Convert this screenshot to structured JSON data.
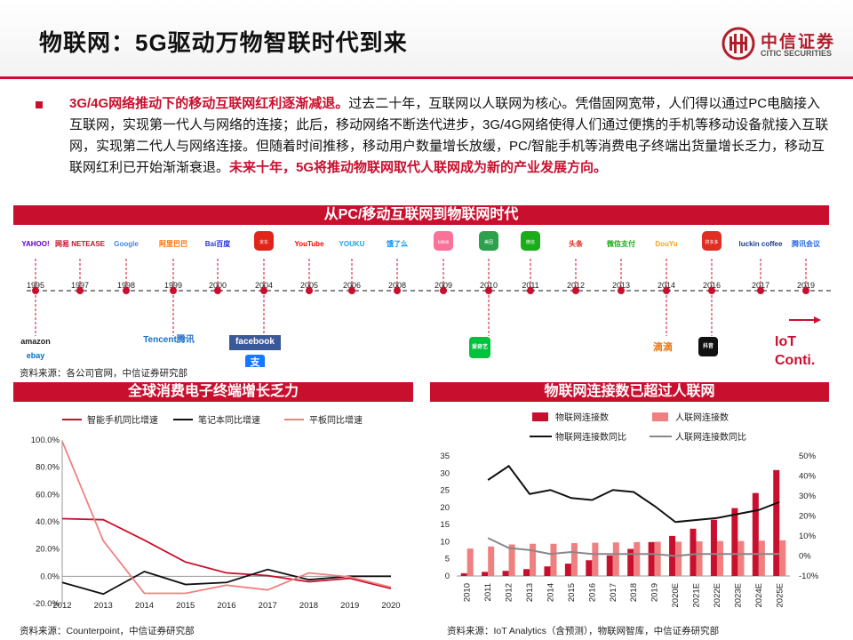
{
  "header": {
    "title": "物联网：5G驱动万物智联时代到来",
    "logo_cn": "中信证券",
    "logo_en": "CITIC SECURITIES"
  },
  "intro": {
    "lead": "3G/4G网络推动下的移动互联网红利逐渐减退。",
    "body": "过去二十年，互联网以人联网为核心。凭借固网宽带，人们得以通过PC电脑接入互联网，实现第一代人与网络的连接；此后，移动网络不断迭代进步，3G/4G网络使得人们通过便携的手机等移动设备就接入互联网，实现第二代人与网络连接。但随着时间推移，移动用户数量增长放缓，PC/智能手机等消费电子终端出货量增长乏力，移动互联网红利已开始渐渐衰退。",
    "tail": "未来十年，5G将推动物联网取代人联网成为新的产业发展方向。"
  },
  "timeline": {
    "title": "从PC/移动互联网到物联网时代",
    "years": [
      "1995",
      "1997",
      "1998",
      "1999",
      "2000",
      "2004",
      "2005",
      "2006",
      "2008",
      "2009",
      "2010",
      "2011",
      "2012",
      "2013",
      "2014",
      "2016",
      "2017",
      "2019"
    ],
    "logos_top": [
      "YAHOO!",
      "网易 NETEASE",
      "Google",
      "阿里巴巴",
      "Bai百度",
      "京东",
      "YouTube",
      "YOUKU",
      "饿了么",
      "bilibili",
      "美团",
      "微信",
      "头条",
      "微信支付",
      "DouYu",
      "拼多多",
      "luckin coffee",
      "腾讯会议"
    ],
    "logos_bottom": [
      "amazon",
      "ebay",
      "Tencent腾讯",
      "facebook",
      "支",
      "爱奇艺",
      "滴滴",
      "抖音"
    ],
    "iot_label": "IoT",
    "iot_label2": "Conti.",
    "source": "资料来源：各公司官网，中信证券研究部"
  },
  "colors": {
    "brand": "#c8102e",
    "pink": "#f08080"
  },
  "chart_data": [
    {
      "type": "line",
      "title": "全球消费电子终端增长乏力",
      "x": [
        "2012",
        "2013",
        "2014",
        "2015",
        "2016",
        "2017",
        "2018",
        "2019",
        "2020"
      ],
      "series": [
        {
          "name": "智能手机同比增速",
          "color": "#c8102e",
          "values": [
            42.3,
            41.5,
            26.5,
            10.5,
            2.5,
            0.5,
            -4.0,
            -1.5,
            -9.0
          ]
        },
        {
          "name": "笔记本同比增速",
          "color": "#111111",
          "values": [
            -4.5,
            -13.0,
            3.5,
            -6.0,
            -4.5,
            5.0,
            -2.5,
            0.0,
            0.0
          ]
        },
        {
          "name": "平板同比增速",
          "color": "#f08080",
          "values": [
            99.0,
            26.0,
            -12.5,
            -12.5,
            -6.5,
            -10.0,
            2.5,
            -0.5,
            -8.0
          ]
        }
      ],
      "y_ticks": [
        "100.0%",
        "80.0%",
        "60.0%",
        "40.0%",
        "20.0%",
        "0.0%",
        "-20.0%"
      ],
      "ylim": [
        -20,
        100
      ],
      "source": "资料来源：Counterpoint，中信证券研究部"
    },
    {
      "type": "bar+line",
      "title": "物联网连接数已超过人联网",
      "x": [
        "2010",
        "2011",
        "2012",
        "2013",
        "2014",
        "2015",
        "2016",
        "2017",
        "2018",
        "2019",
        "2020E",
        "2021E",
        "2022E",
        "2023E",
        "2024E",
        "2025E"
      ],
      "bars": [
        {
          "name": "物联网连接数",
          "color": "#c8102e",
          "values": [
            0.8,
            1.2,
            1.5,
            2.0,
            2.8,
            3.6,
            4.6,
            6.0,
            7.9,
            9.9,
            11.7,
            13.8,
            16.4,
            19.8,
            24.2,
            30.9
          ]
        },
        {
          "name": "人联网连接数",
          "color": "#f08080",
          "values": [
            8.0,
            8.6,
            9.2,
            9.4,
            9.4,
            9.6,
            9.7,
            9.8,
            9.9,
            10.0,
            10.0,
            10.1,
            10.2,
            10.2,
            10.3,
            10.4
          ]
        }
      ],
      "lines": [
        {
          "name": "物联网连接数同比",
          "color": "#111111",
          "values": [
            null,
            38,
            45,
            31,
            33,
            29,
            28,
            33,
            32,
            25,
            17,
            18,
            19,
            21,
            23,
            27
          ]
        },
        {
          "name": "人联网连接数同比",
          "color": "#888888",
          "values": [
            null,
            9,
            4,
            3,
            1,
            2,
            1,
            1,
            1,
            1,
            0,
            1,
            1,
            1,
            1,
            1
          ]
        }
      ],
      "y_left_ticks": [
        "35",
        "30",
        "25",
        "20",
        "15",
        "10",
        "5",
        "0"
      ],
      "y_right_ticks": [
        "50%",
        "40%",
        "30%",
        "20%",
        "10%",
        "0%",
        "-10%"
      ],
      "ylim_left": [
        0,
        35
      ],
      "ylim_right": [
        -10,
        50
      ],
      "source": "资料来源：IoT Analytics（含预测），物联网智库，中信证券研究部"
    }
  ]
}
